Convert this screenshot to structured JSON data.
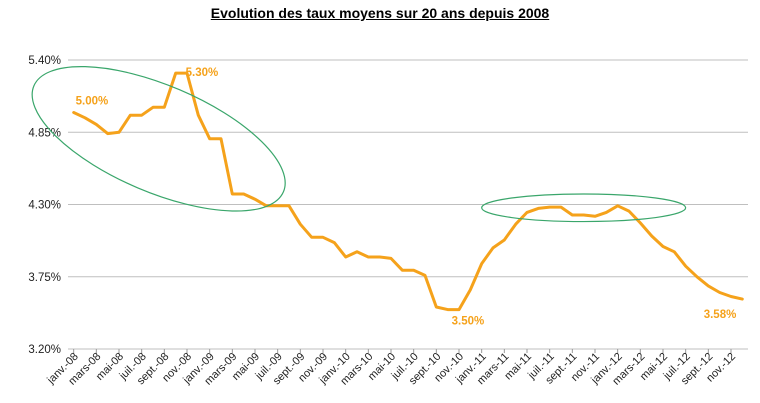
{
  "chart_data": {
    "type": "line",
    "title": "Evolution des taux moyens sur 20 ans depuis 2008",
    "xlabel": "",
    "ylabel": "",
    "ylim": [
      3.2,
      5.4
    ],
    "yticks": [
      "3.20%",
      "3.75%",
      "4.30%",
      "4.85%",
      "5.40%"
    ],
    "ytick_values": [
      3.2,
      3.75,
      4.3,
      4.85,
      5.4
    ],
    "grid": true,
    "legend": "none",
    "x_tick_labels": [
      "janv.-08",
      "mars-08",
      "mai-08",
      "juil.-08",
      "sept.-08",
      "nov.-08",
      "janv.-09",
      "mars-09",
      "mai-09",
      "juil.-09",
      "sept.-09",
      "nov.-09",
      "janv.-10",
      "mars-10",
      "mai-10",
      "juil.-10",
      "sept.-10",
      "nov.-10",
      "janv.-11",
      "mars-11",
      "mai-11",
      "juil.-11",
      "sept.-11",
      "nov.-11",
      "janv.-12",
      "mars-12",
      "mai-12",
      "juil.-12",
      "sept.-12",
      "nov.-12"
    ],
    "series": [
      {
        "color": "#f5a21b",
        "values": [
          5.0,
          4.96,
          4.91,
          4.84,
          4.85,
          4.98,
          4.98,
          5.04,
          5.04,
          5.3,
          5.3,
          4.98,
          4.8,
          4.8,
          4.38,
          4.38,
          4.34,
          4.29,
          4.29,
          4.29,
          4.15,
          4.05,
          4.05,
          4.01,
          3.9,
          3.94,
          3.9,
          3.9,
          3.89,
          3.8,
          3.8,
          3.76,
          3.52,
          3.5,
          3.5,
          3.65,
          3.85,
          3.97,
          4.03,
          4.15,
          4.24,
          4.27,
          4.28,
          4.28,
          4.22,
          4.22,
          4.21,
          4.24,
          4.29,
          4.25,
          4.16,
          4.06,
          3.98,
          3.94,
          3.83,
          3.75,
          3.68,
          3.63,
          3.6,
          3.58
        ]
      }
    ],
    "data_labels": [
      {
        "index": 0,
        "text": "5.00%"
      },
      {
        "index": 9,
        "text": "5.30%"
      },
      {
        "index": 33,
        "text": "3.50%"
      },
      {
        "index": 59,
        "text": "3.58%"
      }
    ],
    "annotations": [
      {
        "type": "ellipse",
        "color": "#3aa66b",
        "x_from_index": -4,
        "x_to_index": 19,
        "y_from": 4.1,
        "y_to": 5.5
      },
      {
        "type": "ellipse",
        "color": "#3aa66b",
        "x_from_index": 36,
        "x_to_index": 54,
        "y_from": 4.17,
        "y_to": 4.38
      }
    ]
  }
}
